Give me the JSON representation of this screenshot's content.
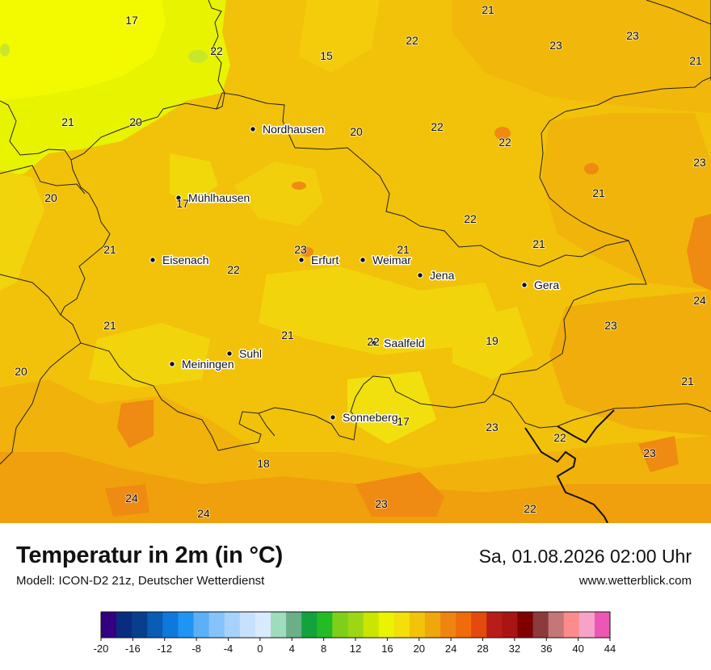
{
  "map": {
    "title": "Temperatur in 2m (in °C)",
    "model": "Modell: ICON-D2 21z, Deutscher Wetterdienst",
    "datetime": "Sa, 01.08.2026 02:00 Uhr",
    "website": "www.wetterblick.com",
    "cities": [
      {
        "name": "Nordhausen"
      },
      {
        "name": "Mühlhausen"
      },
      {
        "name": "Eisenach"
      },
      {
        "name": "Erfurt"
      },
      {
        "name": "Weimar"
      },
      {
        "name": "Jena"
      },
      {
        "name": "Gera"
      },
      {
        "name": "Suhl"
      },
      {
        "name": "Meiningen"
      },
      {
        "name": "Saalfeld"
      },
      {
        "name": "Sonneberg"
      }
    ],
    "temperatures": [
      "21",
      "17",
      "22",
      "23",
      "23",
      "22",
      "15",
      "21",
      "21",
      "20",
      "20",
      "22",
      "22",
      "23",
      "20",
      "17",
      "21",
      "22",
      "21",
      "23",
      "22",
      "21",
      "21",
      "24",
      "21",
      "21",
      "23",
      "22",
      "19",
      "20",
      "21",
      "23",
      "22",
      "17",
      "23",
      "18",
      "24",
      "24",
      "23",
      "22"
    ]
  },
  "legend": {
    "ticks": [
      "-20",
      "-16",
      "-12",
      "-8",
      "-4",
      "0",
      "4",
      "8",
      "12",
      "16",
      "20",
      "24",
      "28",
      "32",
      "36",
      "40",
      "44"
    ],
    "colors": [
      "#33007f",
      "#0a2c7e",
      "#073f8c",
      "#0a5cb5",
      "#0f78dd",
      "#2094f4",
      "#5cb0f8",
      "#85c3fa",
      "#a6d2fb",
      "#c6e1fc",
      "#d8eafd",
      "#9fdcbd",
      "#6aaf88",
      "#13a23c",
      "#25bb25",
      "#7dcf19",
      "#9dd614",
      "#c9e500",
      "#eaf400",
      "#f4df0a",
      "#f2c309",
      "#f0a70b",
      "#ef8511",
      "#ef6b0b",
      "#e4490d",
      "#b81d1a",
      "#a81513",
      "#800000",
      "#8c3a3a",
      "#c57676",
      "#fc8c8c",
      "#f7a3c9",
      "#ec57b4"
    ]
  }
}
